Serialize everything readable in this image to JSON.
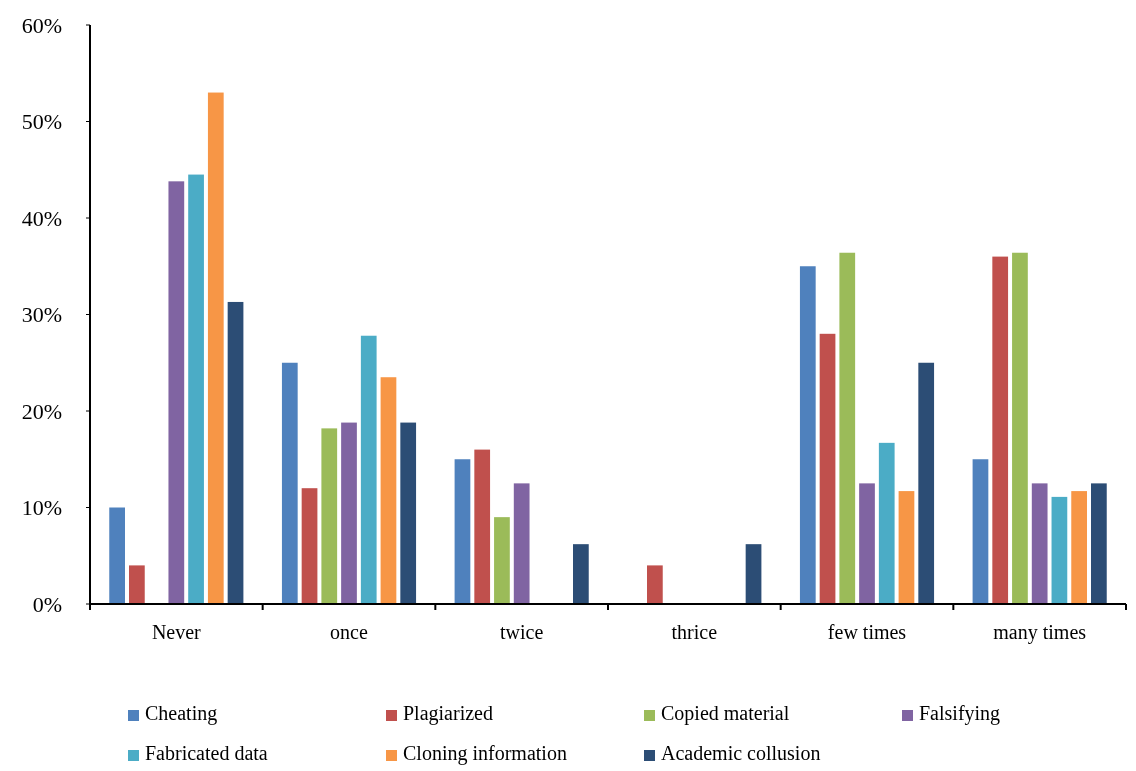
{
  "chart_data": {
    "type": "bar",
    "categories": [
      "Never",
      "once",
      "twice",
      "thrice",
      "few times",
      "many times"
    ],
    "series": [
      {
        "name": "Cheating",
        "color": "#4f81bd",
        "values": [
          10,
          25,
          15,
          0,
          35,
          15
        ]
      },
      {
        "name": "Plagiarized",
        "color": "#c0504d",
        "values": [
          4,
          12,
          16,
          4,
          28,
          36
        ]
      },
      {
        "name": "Copied material",
        "color": "#9bbb59",
        "values": [
          0,
          18.2,
          9,
          0,
          36.4,
          36.4
        ]
      },
      {
        "name": "Falsifying",
        "color": "#8064a2",
        "values": [
          43.8,
          18.8,
          12.5,
          0,
          12.5,
          12.5
        ]
      },
      {
        "name": "Fabricated data",
        "color": "#4bacc6",
        "values": [
          44.5,
          27.8,
          0,
          0,
          16.7,
          11.1
        ]
      },
      {
        "name": "Cloning information",
        "color": "#f79646",
        "values": [
          53,
          23.5,
          0,
          0,
          11.7,
          11.7
        ]
      },
      {
        "name": "Academic collusion",
        "color": "#2c4d75",
        "values": [
          31.3,
          18.8,
          6.2,
          6.2,
          25,
          12.5
        ]
      }
    ],
    "ylim": [
      0,
      60
    ],
    "yticks": [
      {
        "value": 0,
        "label": "0%"
      },
      {
        "value": 10,
        "label": "10%"
      },
      {
        "value": 20,
        "label": "20%"
      },
      {
        "value": 30,
        "label": "30%"
      },
      {
        "value": 40,
        "label": "40%"
      },
      {
        "value": 50,
        "label": "50%"
      },
      {
        "value": 60,
        "label": "60%"
      }
    ],
    "grid": false,
    "legend": "bottom"
  }
}
